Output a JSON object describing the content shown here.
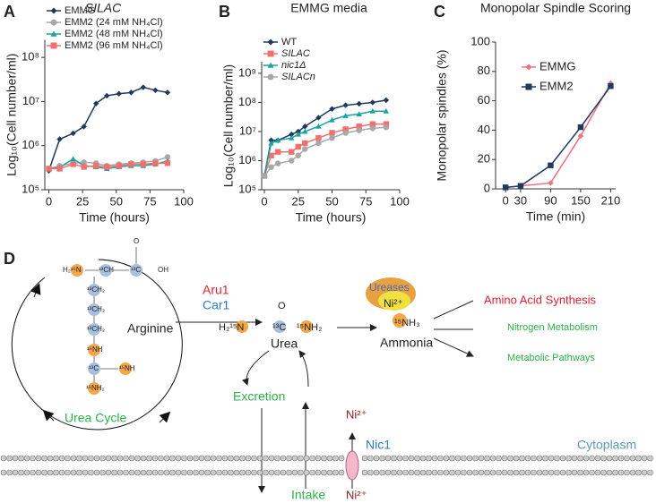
{
  "chart_data": [
    {
      "type": "line",
      "panel": "A",
      "title": "SILAC",
      "ylabel": "Log₁₀(Cell number/ml)",
      "xlabel": "Time (hours)",
      "log_y": true,
      "x": [
        0,
        8,
        18,
        26,
        35,
        43,
        52,
        61,
        70,
        79,
        88
      ],
      "xlim": [
        -3,
        100
      ],
      "xticks": [
        0,
        25,
        50,
        75,
        100
      ],
      "ylim": [
        100000,
        250000000
      ],
      "yticks": [
        {
          "value": 100000,
          "label": "10⁵"
        },
        {
          "value": 1000000,
          "label": "10⁶"
        },
        {
          "value": 10000000,
          "label": "10⁷"
        },
        {
          "value": 100000000,
          "label": "10⁸"
        }
      ],
      "series": [
        {
          "name": "EMMG",
          "color": "#1f3a5f",
          "marker": "diamond",
          "values": [
            270000,
            1400000,
            1900000,
            2700000,
            9000000,
            13500000,
            15000000,
            16000000,
            21000000,
            18000000,
            16000000
          ]
        },
        {
          "name": "EMM2 (24 mM NH₄Cl)",
          "color": "#a8a8a8",
          "marker": "circle",
          "values": [
            300000,
            350000,
            400000,
            420000,
            400000,
            350000,
            380000,
            400000,
            420000,
            450000,
            550000
          ]
        },
        {
          "name": "EMM2 (48 mM NH₄Cl)",
          "color": "#1aa3a3",
          "marker": "triangle",
          "values": [
            300000,
            320000,
            500000,
            350000,
            330000,
            300000,
            330000,
            350000,
            350000,
            380000,
            450000
          ]
        },
        {
          "name": "EMM2 (96 mM NH₄Cl)",
          "color": "#f07070",
          "marker": "square",
          "values": [
            300000,
            300000,
            380000,
            330000,
            350000,
            330000,
            350000,
            380000,
            380000,
            400000,
            400000
          ]
        }
      ]
    },
    {
      "type": "line",
      "panel": "B",
      "title": "EMMG media",
      "ylabel": "Log₁₀(Cell number/ml)",
      "xlabel": "Time (hours)",
      "log_y": true,
      "x": [
        0,
        5,
        10,
        20,
        25,
        30,
        40,
        50,
        60,
        70,
        80,
        90
      ],
      "xlim": [
        -2,
        100
      ],
      "xticks": [
        0,
        25,
        50,
        75,
        100
      ],
      "ylim": [
        100000,
        2500000000
      ],
      "yticks": [
        {
          "value": 100000,
          "label": "10⁵"
        },
        {
          "value": 1000000,
          "label": "10⁶"
        },
        {
          "value": 10000000,
          "label": "10⁷"
        },
        {
          "value": 100000000,
          "label": "10⁸"
        },
        {
          "value": 1000000000,
          "label": "10⁹"
        }
      ],
      "series": [
        {
          "name": "WT",
          "color": "#1f3a5f",
          "marker": "diamond",
          "values": [
            300000,
            5000000,
            5000000,
            8000000,
            10000000,
            15000000,
            30000000,
            60000000,
            80000000,
            90000000,
            100000000,
            120000000
          ]
        },
        {
          "name": "SILAC",
          "color": "#f07070",
          "marker": "square",
          "values": [
            300000,
            1500000,
            2000000,
            2000000,
            3000000,
            4000000,
            6000000,
            9000000,
            12000000,
            15000000,
            18000000,
            18000000
          ]
        },
        {
          "name": "nic1Δ",
          "color": "#1aa3a3",
          "marker": "triangle",
          "values": [
            300000,
            4000000,
            5000000,
            6000000,
            8000000,
            10000000,
            15000000,
            25000000,
            35000000,
            40000000,
            50000000,
            50000000
          ]
        },
        {
          "name": "SILACn",
          "color": "#a8a8a8",
          "marker": "circle",
          "values": [
            300000,
            600000,
            800000,
            1000000,
            1500000,
            2500000,
            4000000,
            6000000,
            9000000,
            11000000,
            13000000,
            14000000
          ]
        }
      ]
    },
    {
      "type": "line",
      "panel": "C",
      "title": "Monopolar Spindle Scoring",
      "ylabel": "Monopolar spindles (%)",
      "xlabel": "Time (min)",
      "log_y": false,
      "x": [
        0,
        30,
        90,
        150,
        210
      ],
      "xlim": [
        -20,
        220
      ],
      "xticks": [
        0,
        30,
        90,
        150,
        210
      ],
      "ylim": [
        0,
        100
      ],
      "yticks": [
        0,
        20,
        40,
        60,
        80,
        100
      ],
      "series": [
        {
          "name": "EMMG",
          "color": "#f07080",
          "marker": "diamond",
          "values": [
            1,
            2,
            4,
            36,
            72
          ]
        },
        {
          "name": "EMM2",
          "color": "#1f3a5f",
          "marker": "square",
          "values": [
            1,
            2,
            16,
            42,
            70
          ]
        }
      ]
    }
  ],
  "diagram": {
    "panel": "D",
    "arginine": {
      "h2n": "H₂¹⁵N",
      "ch": "¹³CH",
      "c": "¹³C",
      "o": "O",
      "oh": "OH",
      "ch2a": "¹³CH₂",
      "ch2b": "¹³CH₂",
      "ch2c": "¹³CH₂",
      "nh": "¹⁵NH",
      "c2": "¹³C",
      "nh2": "¹⁵NH",
      "nh3": "¹⁵NH₂",
      "name": "Arginine"
    },
    "cycle": "Urea Cycle",
    "aru1": "Aru1",
    "car1": "Car1",
    "urea": {
      "left": "H₂¹⁵N",
      "mid": "¹³C",
      "right": "¹⁵NH₂",
      "o": "O",
      "name": "Urea"
    },
    "ureases": "Ureases",
    "ni_enzyme": "Ni²⁺",
    "ammonia": {
      "formula": "¹⁵NH₃",
      "name": "Ammonia"
    },
    "products": [
      "Amino Acid Synthesis",
      "Nitrogen Metabolism",
      "Metabolic Pathways"
    ],
    "excretion": "Excretion",
    "intake": "Intake",
    "ni_in": "Ni²⁺",
    "ni_out": "Ni²⁺",
    "nic1": "Nic1",
    "cytoplasm": "Cytoplasm"
  }
}
